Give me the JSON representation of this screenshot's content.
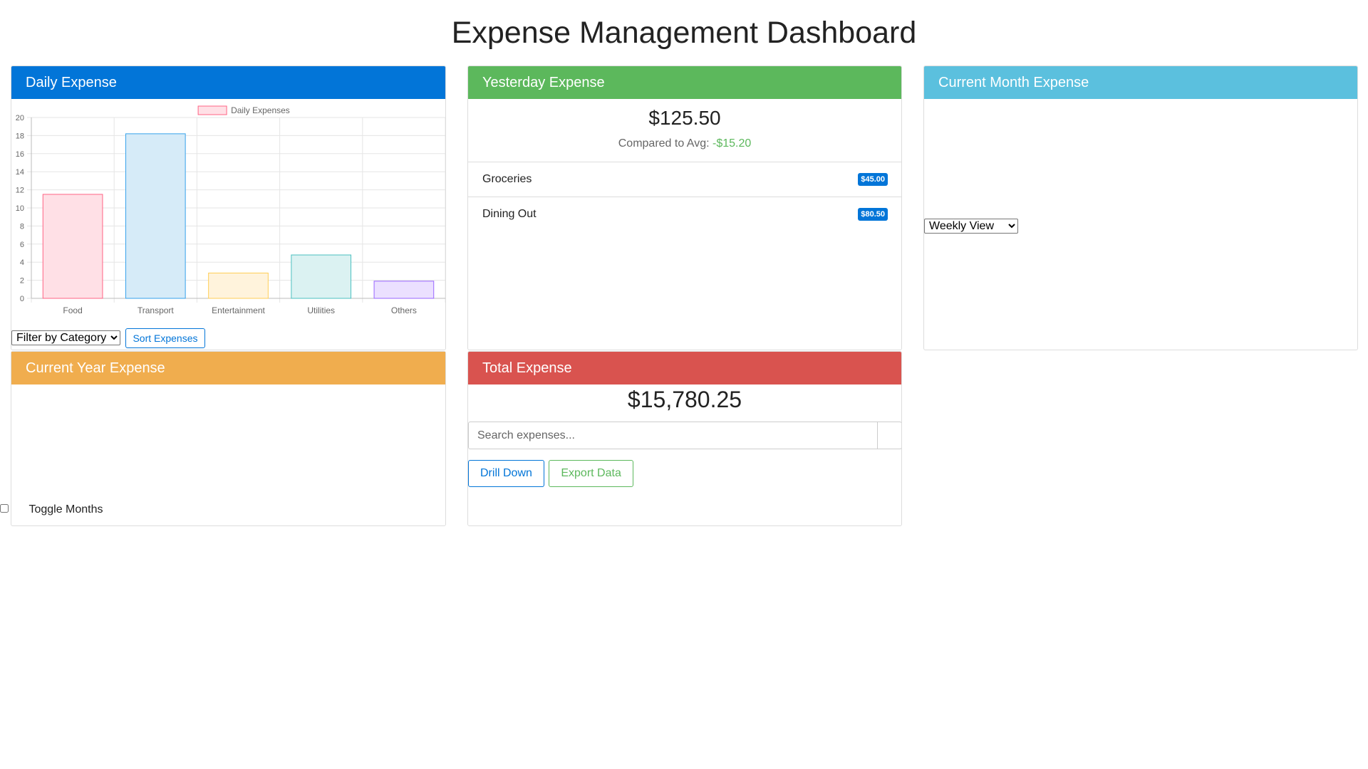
{
  "page": {
    "title": "Expense Management Dashboard"
  },
  "colors": {
    "daily_header": "#0275d8",
    "yesterday_header": "#5cb85c",
    "month_header": "#5bc0de",
    "year_header": "#f0ad4e",
    "total_header": "#d9534f",
    "badge": "#0275d8",
    "positive_delta": "#5cb85c"
  },
  "daily": {
    "title": "Daily Expense",
    "filter_select": {
      "selected": "Filter by Category"
    },
    "sort_button": "Sort Expenses"
  },
  "chart_data": {
    "type": "bar",
    "categories": [
      "Food",
      "Transport",
      "Entertainment",
      "Utilities",
      "Others"
    ],
    "series": [
      {
        "name": "Daily Expenses",
        "values": [
          11.5,
          18.2,
          2.8,
          4.8,
          1.9
        ]
      }
    ],
    "bar_fill_colors": [
      "#ffe0e6",
      "#d6ebf8",
      "#fff3dc",
      "#dbf2f2",
      "#ebe0ff"
    ],
    "bar_stroke_colors": [
      "#ff6384",
      "#36a2eb",
      "#ffce56",
      "#4bc0c0",
      "#9966ff"
    ],
    "legend_fill": "#ffe0e6",
    "legend_stroke": "#ff6384",
    "ylim": [
      0,
      20
    ],
    "yticks": [
      0,
      2,
      4,
      6,
      8,
      10,
      12,
      14,
      16,
      18,
      20
    ],
    "legend_position": "top",
    "grid": true
  },
  "yesterday": {
    "title": "Yesterday Expense",
    "amount": "$125.50",
    "compare_label": "Compared to Avg:",
    "compare_value": "-$15.20",
    "items": [
      {
        "label": "Groceries",
        "amount": "$45.00"
      },
      {
        "label": "Dining Out",
        "amount": "$80.50"
      }
    ]
  },
  "month": {
    "title": "Current Month Expense",
    "view_select": {
      "selected": "Weekly View"
    }
  },
  "year": {
    "title": "Current Year Expense",
    "toggle_label": "Toggle Months",
    "toggle_checked": false
  },
  "total": {
    "title": "Total Expense",
    "amount": "$15,780.25",
    "search_placeholder": "Search expenses...",
    "drill_button": "Drill Down",
    "export_button": "Export Data"
  }
}
